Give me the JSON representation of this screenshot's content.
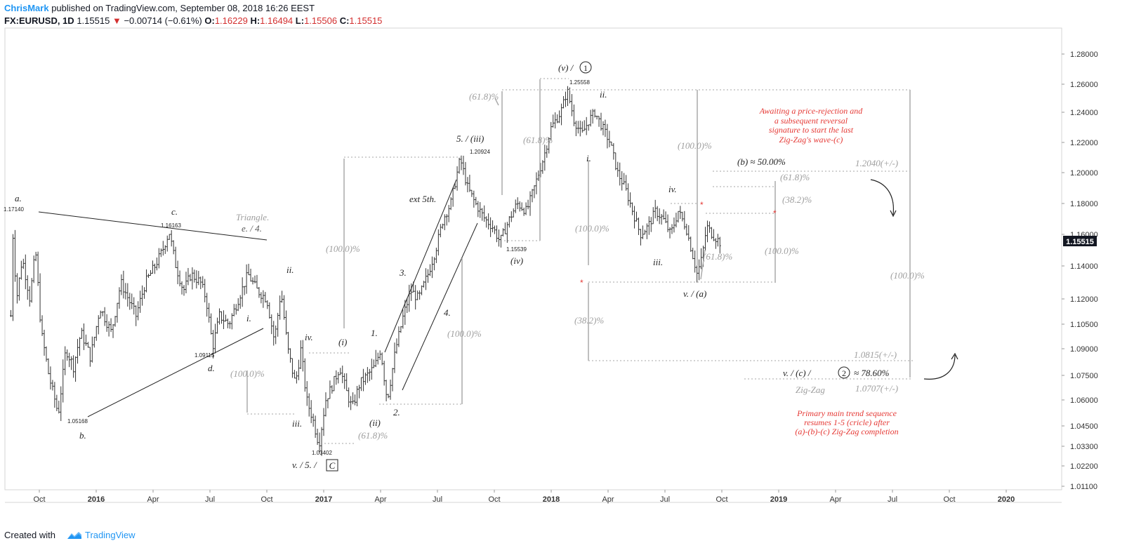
{
  "header": {
    "author": "ChrisMark",
    "published": "published on TradingView.com, September 08, 2018 16:26 EEST",
    "symbol": "FX:EURUSD, 1D",
    "last": "1.15515",
    "change": "−0.00714 (−0.61%)",
    "o_label": "O:",
    "o": "1.16229",
    "h_label": "H:",
    "h": "1.16494",
    "l_label": "L:",
    "l": "1.15506",
    "c_label": "C:",
    "c": "1.15515"
  },
  "footer": {
    "created_with": "Created with",
    "brand": "TradingView"
  },
  "colors": {
    "accent": "#2196f3",
    "down": "#d32f2f",
    "annotation_red": "#e53935",
    "grey": "#9e9e9e",
    "price_tag": "#131722"
  },
  "chart_data": {
    "type": "ohlc",
    "title": "FX:EURUSD, 1D",
    "price_axis": [
      "1.28000",
      "1.26000",
      "1.24000",
      "1.22000",
      "1.20000",
      "1.18000",
      "1.16000",
      "1.14000",
      "1.12000",
      "1.10500",
      "1.09000",
      "1.07500",
      "1.06000",
      "1.04500",
      "1.03300",
      "1.02200",
      "1.01100"
    ],
    "price_axis_values": [
      1.28,
      1.26,
      1.24,
      1.22,
      1.2,
      1.18,
      1.16,
      1.14,
      1.12,
      1.105,
      1.09,
      1.075,
      1.06,
      1.045,
      1.033,
      1.022,
      1.011
    ],
    "last_price_label": "1.15515",
    "time_axis": [
      {
        "label": "Oct",
        "t": -3
      },
      {
        "label": "2016",
        "t": 0,
        "bold": true
      },
      {
        "label": "Apr",
        "t": 3
      },
      {
        "label": "Jul",
        "t": 6
      },
      {
        "label": "Oct",
        "t": 9
      },
      {
        "label": "2017",
        "t": 12,
        "bold": true
      },
      {
        "label": "Apr",
        "t": 15
      },
      {
        "label": "Jul",
        "t": 18
      },
      {
        "label": "Oct",
        "t": 21
      },
      {
        "label": "2018",
        "t": 24,
        "bold": true
      },
      {
        "label": "Apr",
        "t": 27
      },
      {
        "label": "Jul",
        "t": 30
      },
      {
        "label": "Oct",
        "t": 33
      },
      {
        "label": "2019",
        "t": 36,
        "bold": true
      },
      {
        "label": "Apr",
        "t": 39
      },
      {
        "label": "Jul",
        "t": 42
      },
      {
        "label": "Oct",
        "t": 45
      },
      {
        "label": "2020",
        "t": 48,
        "bold": true
      }
    ],
    "price_path": [
      [
        -4.5,
        1.11
      ],
      [
        -4.45,
        1.1714
      ],
      [
        -4.2,
        1.12
      ],
      [
        -3.9,
        1.145
      ],
      [
        -3.5,
        1.12
      ],
      [
        -3.2,
        1.15
      ],
      [
        -2.9,
        1.1
      ],
      [
        -2.5,
        1.075
      ],
      [
        -2.0,
        1.05168
      ],
      [
        -1.6,
        1.09
      ],
      [
        -1.2,
        1.08
      ],
      [
        -0.8,
        1.1
      ],
      [
        -0.3,
        1.085
      ],
      [
        0.2,
        1.115
      ],
      [
        0.8,
        1.1
      ],
      [
        1.3,
        1.13
      ],
      [
        2.1,
        1.11
      ],
      [
        2.6,
        1.13
      ],
      [
        3.1,
        1.14
      ],
      [
        3.5,
        1.15
      ],
      [
        3.85,
        1.16163
      ],
      [
        4.2,
        1.14
      ],
      [
        4.6,
        1.125
      ],
      [
        5.0,
        1.135
      ],
      [
        5.5,
        1.13
      ],
      [
        5.8,
        1.12
      ],
      [
        6.15,
        1.09115
      ],
      [
        6.5,
        1.11
      ],
      [
        7.0,
        1.105
      ],
      [
        7.5,
        1.12
      ],
      [
        8.0,
        1.135
      ],
      [
        8.5,
        1.125
      ],
      [
        9.0,
        1.12
      ],
      [
        9.4,
        1.095
      ],
      [
        9.75,
        1.125
      ],
      [
        10.1,
        1.09
      ],
      [
        10.5,
        1.07
      ],
      [
        10.8,
        1.09
      ],
      [
        11.1,
        1.06
      ],
      [
        11.4,
        1.05
      ],
      [
        11.75,
        1.03402
      ],
      [
        12.1,
        1.06
      ],
      [
        12.5,
        1.07
      ],
      [
        12.85,
        1.08
      ],
      [
        13.2,
        1.065
      ],
      [
        13.5,
        1.055
      ],
      [
        13.9,
        1.07
      ],
      [
        14.3,
        1.075
      ],
      [
        14.7,
        1.08
      ],
      [
        15.0,
        1.09
      ],
      [
        15.35,
        1.06
      ],
      [
        15.8,
        1.09
      ],
      [
        16.2,
        1.11
      ],
      [
        16.6,
        1.125
      ],
      [
        17.0,
        1.12
      ],
      [
        17.5,
        1.135
      ],
      [
        17.9,
        1.15
      ],
      [
        18.3,
        1.17
      ],
      [
        18.7,
        1.18
      ],
      [
        19.2,
        1.20924
      ],
      [
        19.6,
        1.19
      ],
      [
        20.0,
        1.18
      ],
      [
        20.5,
        1.17
      ],
      [
        20.9,
        1.165
      ],
      [
        21.3,
        1.15539
      ],
      [
        21.8,
        1.17
      ],
      [
        22.2,
        1.18
      ],
      [
        22.7,
        1.175
      ],
      [
        23.1,
        1.19
      ],
      [
        23.6,
        1.21
      ],
      [
        24.0,
        1.23
      ],
      [
        24.5,
        1.24
      ],
      [
        24.85,
        1.25558
      ],
      [
        25.2,
        1.235
      ],
      [
        25.6,
        1.225
      ],
      [
        26.0,
        1.235
      ],
      [
        26.3,
        1.24
      ],
      [
        26.7,
        1.23
      ],
      [
        27.1,
        1.22
      ],
      [
        27.5,
        1.2
      ],
      [
        27.9,
        1.19
      ],
      [
        28.3,
        1.175
      ],
      [
        28.7,
        1.16
      ],
      [
        29.1,
        1.165
      ],
      [
        29.5,
        1.175
      ],
      [
        29.9,
        1.17
      ],
      [
        30.3,
        1.16
      ],
      [
        30.7,
        1.175
      ],
      [
        31.1,
        1.165
      ],
      [
        31.4,
        1.15
      ],
      [
        31.7,
        1.135
      ],
      [
        31.95,
        1.145
      ],
      [
        32.2,
        1.165
      ],
      [
        32.5,
        1.16
      ],
      [
        32.9,
        1.155
      ]
    ]
  },
  "annotations": {
    "wave_a_top": "a.",
    "wave_a_price": "1.17140",
    "wave_b": "b.",
    "wave_b_price": "1.05168",
    "wave_c": "c.",
    "wave_c_price": "1.16163",
    "wave_d": "d.",
    "wave_d_price": "1.09115",
    "triangle": "Triangle.",
    "triangle_e4": "e. / 4.",
    "ii_left": "ii.",
    "i_left": "i.",
    "iv_left": "iv.",
    "iii_left": "iii.",
    "v5c": "v. / 5. /",
    "c_box": "C",
    "low_price": "1.03402",
    "w_i": "(i)",
    "w_ii": "(ii)",
    "pct_618_low": "(61.8)%",
    "pct_100_left": "(100.0)%",
    "w1": "1.",
    "w2": "2.",
    "w3": "3.",
    "w4": "4.",
    "ext5": "ext 5th.",
    "w5iii": "5. / (iii)",
    "price_120924": "1.20924",
    "pct_100_a": "(100.0)%",
    "pct_100_b": "(100.0)%",
    "pct_618_top": "(61.8)%",
    "w_iv": "(iv)",
    "price_115539": "1.15539",
    "pct_618_mid": "(61.8)%",
    "wv1": "(v) /",
    "circle1": "1",
    "price_125558": "1.25558",
    "ii_top": "ii.",
    "i_mid": "i.",
    "pct_100_c": "(100.0)%",
    "pct_382": "(38.2)%",
    "pct_100_d": "(100.0)%",
    "iv_right": "iv.",
    "iii_right": "iii.",
    "pct_618_r": "(61.8)%",
    "va": "v. / (a)",
    "b50": "(b) ≈ 50.00%",
    "pct_618_b": "(61.8)%",
    "pct_382_b": "(38.2)%",
    "pct_100_e": "(100.0)%",
    "lvl_12040": "1.2040(+/-)",
    "pct_100_f": "(100.0)%",
    "lvl_10815": "1.0815(+/-)",
    "vc2": "v. / (c) /",
    "circle2": "2",
    "approx786": "≈ 78.60%",
    "zigzag": "Zig-Zag",
    "lvl_10707": "1.0707(+/-)",
    "note_top": [
      "Awaiting a price-rejection and",
      "a subsequent reversal",
      "signature to start the last",
      "Zig-Zag's wave-(c)"
    ],
    "note_bottom": [
      "Primary main trend sequence",
      "resumes 1-5 (cricle) after",
      "(a)-(b)-(c) Zig-Zag completion"
    ]
  }
}
